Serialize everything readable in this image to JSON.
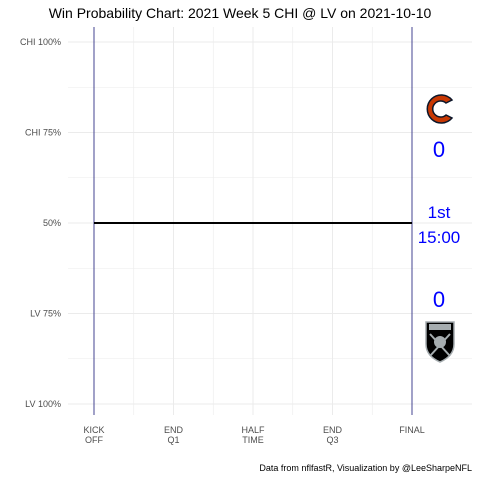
{
  "chart_data": {
    "type": "line",
    "title": "Win Probability Chart: 2021 Week 5 CHI @ LV on 2021-10-10",
    "x_ticks": [
      {
        "value": 0,
        "lines": [
          "KICK",
          "OFF"
        ]
      },
      {
        "value": 15,
        "lines": [
          "END",
          "Q1"
        ]
      },
      {
        "value": 30,
        "lines": [
          "HALF",
          "TIME"
        ]
      },
      {
        "value": 45,
        "lines": [
          "END",
          "Q3"
        ]
      },
      {
        "value": 60,
        "lines": [
          "FINAL"
        ]
      }
    ],
    "y_ticks": [
      {
        "value": 1.0,
        "label": "CHI 100%"
      },
      {
        "value": 0.75,
        "label": "CHI 75%"
      },
      {
        "value": 0.5,
        "label": "50%"
      },
      {
        "value": 0.25,
        "label": "LV 75%"
      },
      {
        "value": 0.0,
        "label": "LV 100%"
      }
    ],
    "xlim": [
      0,
      60
    ],
    "ylim": [
      0,
      1
    ],
    "grid": true,
    "series": [
      {
        "x": [
          0,
          60
        ],
        "y": [
          0.5,
          0.5
        ],
        "color": "#000000"
      }
    ],
    "kickoff_line_color": "#1a1a7a",
    "final_line_color": "#1a1a7a",
    "home_team": {
      "abbr": "LV",
      "score": "0",
      "logo_icon": "raiders-logo-icon"
    },
    "away_team": {
      "abbr": "CHI",
      "score": "0",
      "logo_icon": "bears-logo-icon"
    },
    "game_state": {
      "quarter": "1st",
      "clock": "15:00"
    },
    "caption": "Data from nflfastR, Visualization by @LeeSharpeNFL",
    "colors": {
      "info_text": "#0000ff",
      "grid": "#ebebeb",
      "bears_orange": "#c83803",
      "bears_navy": "#0b162a",
      "raiders_black": "#000000",
      "raiders_silver": "#a5acaf"
    }
  }
}
